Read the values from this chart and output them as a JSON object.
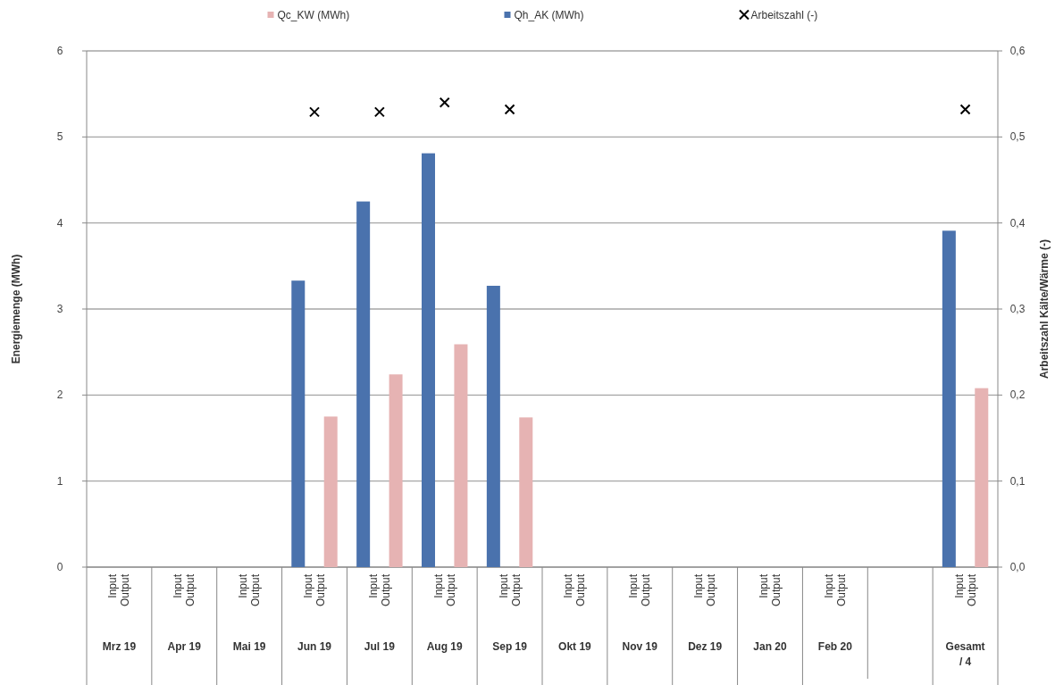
{
  "chart_data": {
    "type": "bar",
    "ylabel": "Energiemenge (MWh)",
    "y2label": "Arbeitszahl Kälte/Wärme (-)",
    "categories": [
      "Mrz 19",
      "Apr 19",
      "Mai 19",
      "Jun 19",
      "Jul 19",
      "Aug 19",
      "Sep 19",
      "Okt 19",
      "Nov 19",
      "Dez 19",
      "Jan 20",
      "Feb 20",
      null,
      "Gesamt / 4"
    ],
    "annotations": [
      "Input",
      "Output"
    ],
    "series": [
      {
        "name": "Qc_KW (MWh)",
        "color": "#e6b3b3",
        "values": [
          null,
          null,
          null,
          1.75,
          2.24,
          2.59,
          1.74,
          null,
          null,
          null,
          null,
          null,
          null,
          2.08
        ]
      },
      {
        "name": "Qh_AK (MWh)",
        "color": "#4a72ad",
        "values": [
          null,
          null,
          null,
          3.33,
          4.25,
          4.81,
          3.27,
          null,
          null,
          null,
          null,
          null,
          null,
          3.91
        ]
      },
      {
        "name": "Arbeitszahl (-)",
        "type": "scatter",
        "axis": "y2",
        "color": "#000000",
        "values": [
          null,
          null,
          null,
          0.529,
          0.529,
          0.54,
          0.532,
          null,
          null,
          null,
          null,
          null,
          null,
          0.532
        ]
      }
    ],
    "ylim": [
      0,
      6
    ],
    "yticks": [
      0,
      1,
      2,
      3,
      4,
      5,
      6
    ],
    "y2lim": [
      0,
      0.6
    ],
    "y2ticks": [
      {
        "value": 0,
        "label": "0,0"
      },
      {
        "value": 0.1,
        "label": "0,1"
      },
      {
        "value": 0.2,
        "label": "0,2"
      },
      {
        "value": 0.3,
        "label": "0,3"
      },
      {
        "value": 0.4,
        "label": "0,4"
      },
      {
        "value": 0.5,
        "label": "0,5"
      },
      {
        "value": 0.6,
        "label": "0,6"
      }
    ],
    "grid": "y",
    "legend": "top",
    "marker": "cross"
  }
}
